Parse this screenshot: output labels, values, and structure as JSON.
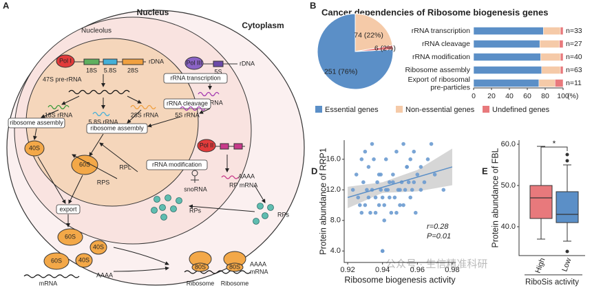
{
  "panels": [
    "A",
    "B",
    "D",
    "E"
  ],
  "diagram": {
    "nucleus": "Nucleus",
    "cytoplasm": "Cytoplasm",
    "nucleolus": "Nucleolus",
    "pol1": "Pol I",
    "rdna1": "rDNA",
    "s18": "18S",
    "s58": "5.8S",
    "s28": "28S",
    "pre": "47S pre-rRNA",
    "pol3": "Pol III",
    "rdna2": "rDNA",
    "s5": "5S",
    "transcription": "rRNA transcription",
    "cleavage": "rRNA cleavage",
    "r5a": "5S rRNA",
    "r18": "18S rRNA",
    "r58": "5.8S rRNA",
    "r28": "28S rRNA",
    "r5b": "5S rRNA",
    "assembly1": "ribosome assembly",
    "assembly2": "ribosome assembly",
    "s40a": "40S",
    "s60a": "60S",
    "rps": "RPS",
    "rpl": "RPL",
    "pol2": "Pol II",
    "modification": "rRNA modification",
    "snorna": "snoRNA",
    "polya1": "AAAA",
    "rpmrna": "RP mRNA",
    "rps1": "RPs",
    "rps2": "RPs",
    "export": "export",
    "s60b": "60S",
    "s40b": "40S",
    "s60c": "60S",
    "s40c": "40S",
    "s80a": "80S",
    "ribo1": "Ribosome",
    "s80b": "80S",
    "ribo2": "Ribosome",
    "polya2": "AAAA",
    "mrna1": "mRNA",
    "mrna2": "mRNA",
    "polya3": "AAAA"
  },
  "title_b": "Cancer dependencies of Ribosome biogenesis genes",
  "watermark": "公众号 · 生信精准科研",
  "chart_data": [
    {
      "type": "pie",
      "categories": [
        "Essential genes",
        "Non-essential genes",
        "Undefined genes"
      ],
      "values": [
        251,
        74,
        6
      ],
      "value_labels": [
        "251 (76%)",
        "74 (22%)",
        "6 (2%)"
      ],
      "colors": [
        "#5b8fc7",
        "#f5caa8",
        "#e8797c"
      ]
    },
    {
      "type": "hbar_stacked",
      "categories": [
        "rRNA transcription",
        "rRNA cleavage",
        "rRNA modification",
        "Ribosome assembly",
        "Export of ribosomal\npre-particles"
      ],
      "series": [
        {
          "name": "Essential genes",
          "color": "#5b8fc7",
          "values": [
            78,
            74,
            75,
            76,
            73
          ]
        },
        {
          "name": "Non-essential genes",
          "color": "#f5caa8",
          "values": [
            19,
            22,
            22,
            21,
            18
          ]
        },
        {
          "name": "Undefined genes",
          "color": "#e8797c",
          "values": [
            3,
            4,
            3,
            3,
            9
          ]
        }
      ],
      "annotations": [
        "n=33",
        "n=27",
        "n=40",
        "n=63",
        "n=11"
      ],
      "xlim": [
        0,
        100
      ],
      "xticks": [
        0,
        20,
        40,
        60,
        80,
        100
      ],
      "x_label": "(%)"
    },
    {
      "type": "scatter",
      "x_label": "Ribosome biogenesis activity",
      "y_label": "Protein abundance of RRP1",
      "color": "#6b9bd0",
      "x": [
        0.923,
        0.925,
        0.927,
        0.928,
        0.929,
        0.93,
        0.931,
        0.932,
        0.933,
        0.934,
        0.935,
        0.936,
        0.937,
        0.938,
        0.939,
        0.94,
        0.941,
        0.942,
        0.943,
        0.944,
        0.945,
        0.946,
        0.947,
        0.948,
        0.949,
        0.95,
        0.951,
        0.952,
        0.953,
        0.954,
        0.955,
        0.956,
        0.957,
        0.958,
        0.959,
        0.96,
        0.962,
        0.964,
        0.966,
        0.968,
        0.97,
        0.975,
        0.926,
        0.93,
        0.934,
        0.936,
        0.938,
        0.94,
        0.942,
        0.944,
        0.946,
        0.948,
        0.95,
        0.952,
        0.954,
        0.956,
        0.958,
        0.94,
        0.941,
        0.939,
        0.962,
        0.928,
        0.932
      ],
      "y": [
        12,
        14,
        10,
        16,
        13,
        17,
        12,
        15,
        9,
        18,
        16,
        11,
        13,
        14,
        12,
        4,
        10,
        16,
        12,
        13,
        9,
        14,
        11,
        17,
        12,
        10,
        13,
        18,
        12,
        15,
        13,
        16,
        12,
        17,
        9,
        14,
        15,
        13,
        16,
        18,
        14,
        12,
        11,
        10,
        12,
        9,
        10,
        4,
        12,
        11,
        13,
        9,
        12,
        10,
        15,
        11,
        13,
        11,
        8,
        14,
        12,
        9,
        11
      ],
      "trend": {
        "x": [
          0.92,
          0.98
        ],
        "y": [
          11,
          15
        ],
        "color": "#5b8fc7"
      },
      "band": {
        "x": [
          0.92,
          0.94,
          0.96,
          0.98
        ],
        "lower": [
          9.6,
          11.6,
          11.8,
          12.6
        ],
        "upper": [
          12.4,
          13.0,
          14.6,
          17.4
        ]
      },
      "annotations": [
        "r=0.28",
        "P=0.01"
      ],
      "xlim": [
        0.918,
        0.982
      ],
      "xticks": [
        0.92,
        0.94,
        0.96,
        0.98
      ],
      "ylim": [
        2.5,
        18.5
      ],
      "yticks": [
        {
          "value": 4,
          "label": "4.0"
        },
        {
          "value": 8,
          "label": "8.0"
        },
        {
          "value": 12,
          "label": "12.0"
        },
        {
          "value": 16,
          "label": "16.0"
        }
      ]
    },
    {
      "type": "box",
      "x_label": "RiboSis activity",
      "y_label": "Protein abundance of FBL",
      "categories": [
        "High",
        "Low"
      ],
      "colors": [
        "#e8797c",
        "#5b8fc7"
      ],
      "boxes": [
        {
          "low": 37,
          "q1": 42,
          "median": 47,
          "q3": 50,
          "high": 59.5,
          "outliers": []
        },
        {
          "low": 36.5,
          "q1": 41,
          "median": 43,
          "q3": 48.5,
          "high": 55,
          "outliers": [
            57.5,
            56,
            34
          ]
        }
      ],
      "significance": "*",
      "ylim": [
        33,
        61
      ],
      "yticks": [
        {
          "value": 40,
          "label": "40.0"
        },
        {
          "value": 50,
          "label": "50.0"
        },
        {
          "value": 60,
          "label": "60.0"
        }
      ]
    }
  ]
}
